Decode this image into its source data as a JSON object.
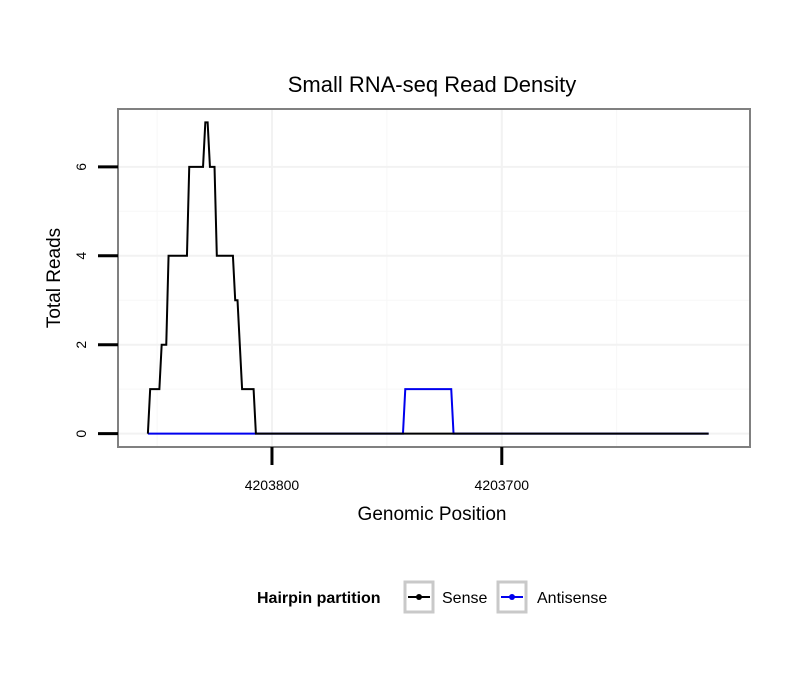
{
  "chart_data": {
    "type": "line",
    "title": "Small RNA-seq Read Density",
    "xlabel": "Genomic Position",
    "ylabel": "Total Reads",
    "xlim": [
      4203867,
      4203592
    ],
    "x_reversed": true,
    "ylim": [
      -0.3,
      7.3
    ],
    "xticks": [
      4203800,
      4203700
    ],
    "xtick_labels": [
      "4203800",
      "4203700"
    ],
    "yticks": [
      0,
      2,
      4,
      6
    ],
    "ytick_labels": [
      "0",
      "2",
      "4",
      "6"
    ],
    "grid": true,
    "legend": {
      "title": "Hairpin partition",
      "position": "bottom",
      "entries": [
        "Sense",
        "Antisense"
      ]
    },
    "series": [
      {
        "name": "Sense",
        "color": "#000000",
        "points": [
          [
            4203854,
            0
          ],
          [
            4203853,
            1
          ],
          [
            4203849,
            1
          ],
          [
            4203848,
            2
          ],
          [
            4203846,
            2
          ],
          [
            4203845,
            4
          ],
          [
            4203837,
            4
          ],
          [
            4203836,
            6
          ],
          [
            4203830,
            6
          ],
          [
            4203829,
            7
          ],
          [
            4203828,
            7
          ],
          [
            4203827,
            6
          ],
          [
            4203825,
            6
          ],
          [
            4203824,
            4
          ],
          [
            4203817,
            4
          ],
          [
            4203816,
            3
          ],
          [
            4203815,
            3
          ],
          [
            4203814,
            2
          ],
          [
            4203813,
            1
          ],
          [
            4203808,
            1
          ],
          [
            4203807,
            0
          ],
          [
            4203610,
            0
          ]
        ]
      },
      {
        "name": "Antisense",
        "color": "#0000ee",
        "points": [
          [
            4203854,
            0
          ],
          [
            4203743,
            0
          ],
          [
            4203742,
            1
          ],
          [
            4203722,
            1
          ],
          [
            4203721,
            0
          ],
          [
            4203610,
            0
          ]
        ]
      }
    ]
  }
}
